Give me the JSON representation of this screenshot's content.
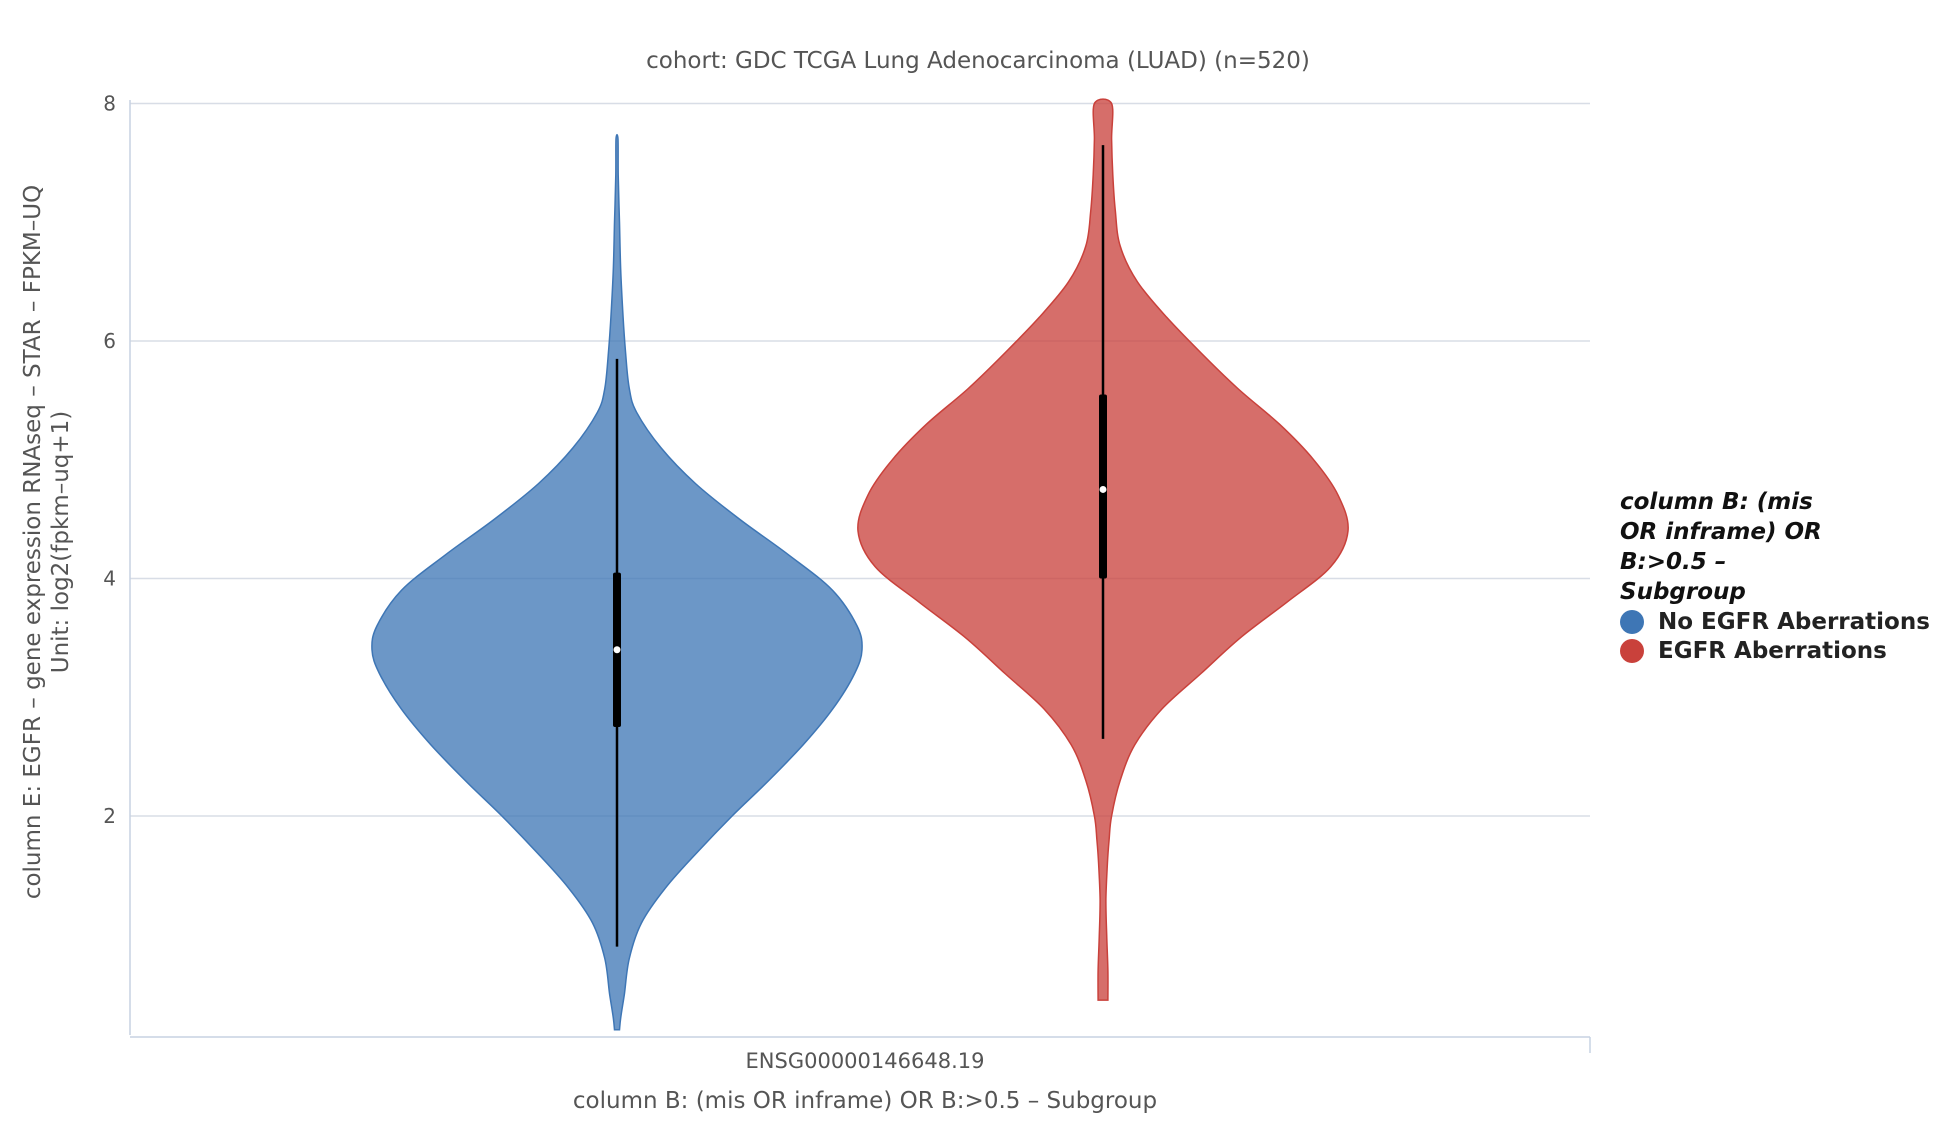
{
  "chart_data": {
    "type": "violin",
    "title": "cohort: GDC TCGA Lung Adenocarcinoma (LUAD) (n=520)",
    "xlabel": "column B: (mis OR inframe) OR B:>0.5 – Subgroup",
    "ylabel_line1": "column E: EGFR – gene expression RNAseq – STAR – FPKM–UQ",
    "ylabel_line2": "Unit: log2(fpkm–uq+1)",
    "categories": [
      "ENSG00000146648.19"
    ],
    "ylim": [
      0,
      8
    ],
    "yticks": [
      "2",
      "4",
      "6",
      "8"
    ],
    "grid": true,
    "legend_placement": "right",
    "legend_title": "column B: (mis OR inframe) OR B:>0.5 – Subgroup",
    "series": [
      {
        "name": "No EGFR Aberrations",
        "color": "#3e76b5",
        "min": 0.9,
        "q1": 2.75,
        "median": 3.4,
        "q3": 4.05,
        "max": 5.85,
        "density_y": [
          0.2,
          0.3,
          0.5,
          0.8,
          1.1,
          1.4,
          1.7,
          2.0,
          2.3,
          2.6,
          2.9,
          3.2,
          3.4,
          3.6,
          3.9,
          4.2,
          4.5,
          4.8,
          5.1,
          5.4,
          5.6,
          5.9,
          6.2,
          6.6,
          7.0,
          7.4,
          7.7
        ],
        "density_w": [
          0.01,
          0.015,
          0.03,
          0.05,
          0.1,
          0.2,
          0.33,
          0.47,
          0.62,
          0.76,
          0.88,
          0.97,
          1.0,
          0.98,
          0.88,
          0.7,
          0.5,
          0.32,
          0.18,
          0.08,
          0.05,
          0.035,
          0.025,
          0.015,
          0.01,
          0.005,
          0.004
        ]
      },
      {
        "name": "EGFR Aberrations",
        "color": "#c9413b",
        "min": 2.65,
        "q1": 4.0,
        "median": 4.75,
        "q3": 5.55,
        "max": 7.65,
        "density_y": [
          0.45,
          0.7,
          1.0,
          1.3,
          1.6,
          1.8,
          2.0,
          2.3,
          2.6,
          2.9,
          3.2,
          3.5,
          3.8,
          4.1,
          4.4,
          4.7,
          5.0,
          5.3,
          5.6,
          5.9,
          6.2,
          6.5,
          6.8,
          7.1,
          7.4,
          7.7,
          8.0
        ],
        "density_w": [
          0.02,
          0.02,
          0.015,
          0.012,
          0.018,
          0.025,
          0.035,
          0.07,
          0.13,
          0.24,
          0.4,
          0.56,
          0.75,
          0.93,
          1.0,
          0.96,
          0.86,
          0.72,
          0.55,
          0.4,
          0.26,
          0.14,
          0.07,
          0.05,
          0.04,
          0.035,
          0.035
        ]
      }
    ]
  }
}
